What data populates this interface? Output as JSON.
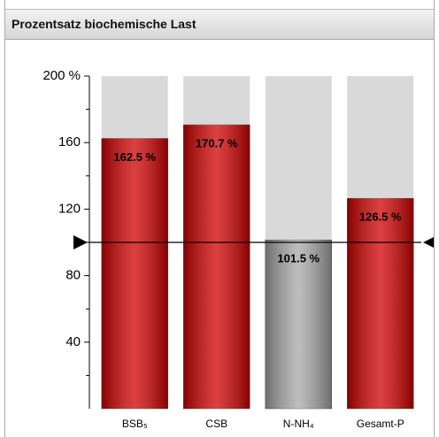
{
  "title": "Prozentsatz biochemische Last",
  "chart_data": {
    "type": "bar",
    "categories": [
      "BSB₅",
      "CSB",
      "N-NH₄",
      "Gesamt-P"
    ],
    "values": [
      162.5,
      170.7,
      101.5,
      126.5
    ],
    "value_labels": [
      "162.5 %",
      "170.7 %",
      "101.5 %",
      "126.5 %"
    ],
    "colors": [
      "#d00000",
      "#d00000",
      "#a8a8a8",
      "#d00000"
    ],
    "background_color": "#d9d9d9",
    "reference_line": 100,
    "ylim": [
      0,
      200
    ],
    "yticks": [
      {
        "value": 200,
        "label": "200 %"
      },
      160,
      120,
      80,
      40
    ],
    "minor_yticks": [
      20,
      60,
      100,
      140,
      180
    ]
  }
}
